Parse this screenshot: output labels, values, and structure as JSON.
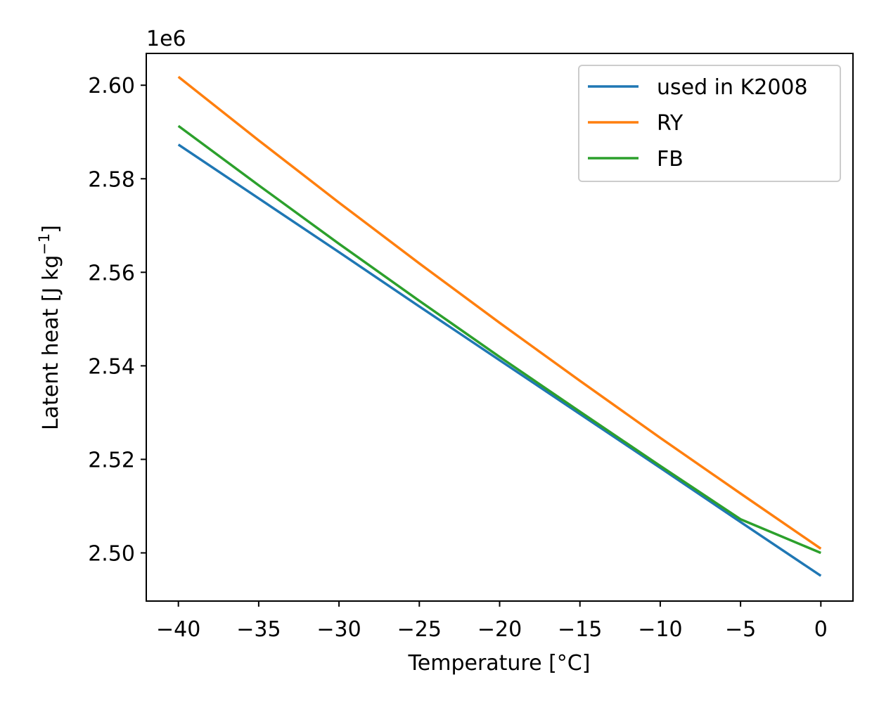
{
  "chart_data": {
    "type": "line",
    "xlabel": "Temperature [°C]",
    "ylabel_main": "Latent heat [J kg",
    "ylabel_sup": "−1",
    "ylabel_close": "]",
    "y_offset_label": "1e6",
    "xlim": [
      -42,
      2
    ],
    "ylim": [
      2.4897,
      2.6068
    ],
    "x_ticks": [
      -40,
      -35,
      -30,
      -25,
      -20,
      -15,
      -10,
      -5,
      0
    ],
    "x_tick_labels": [
      "−40",
      "−35",
      "−30",
      "−25",
      "−20",
      "−15",
      "−10",
      "−5",
      "0"
    ],
    "y_ticks": [
      2.5,
      2.52,
      2.54,
      2.56,
      2.58,
      2.6
    ],
    "y_tick_labels": [
      "2.50",
      "2.52",
      "2.54",
      "2.56",
      "2.58",
      "2.60"
    ],
    "grid": false,
    "legend_position": "top-right",
    "x": [
      -40,
      -35,
      -30,
      -25,
      -20,
      -15,
      -10,
      -5,
      0
    ],
    "series": [
      {
        "name": "used in K2008",
        "color": "#1f77b4",
        "values": [
          2.5873,
          2.5758,
          2.5643,
          2.5527,
          2.5412,
          2.5297,
          2.5182,
          2.5066,
          2.4951
        ]
      },
      {
        "name": "RY",
        "color": "#ff7f0e",
        "values": [
          2.6018,
          2.5882,
          2.5749,
          2.5619,
          2.5492,
          2.5368,
          2.5246,
          2.5127,
          2.5009
        ]
      },
      {
        "name": "FB",
        "color": "#2ca02c",
        "values": [
          2.5913,
          2.5786,
          2.5661,
          2.5539,
          2.5419,
          2.5302,
          2.5186,
          2.5072,
          2.5
        ]
      }
    ]
  }
}
